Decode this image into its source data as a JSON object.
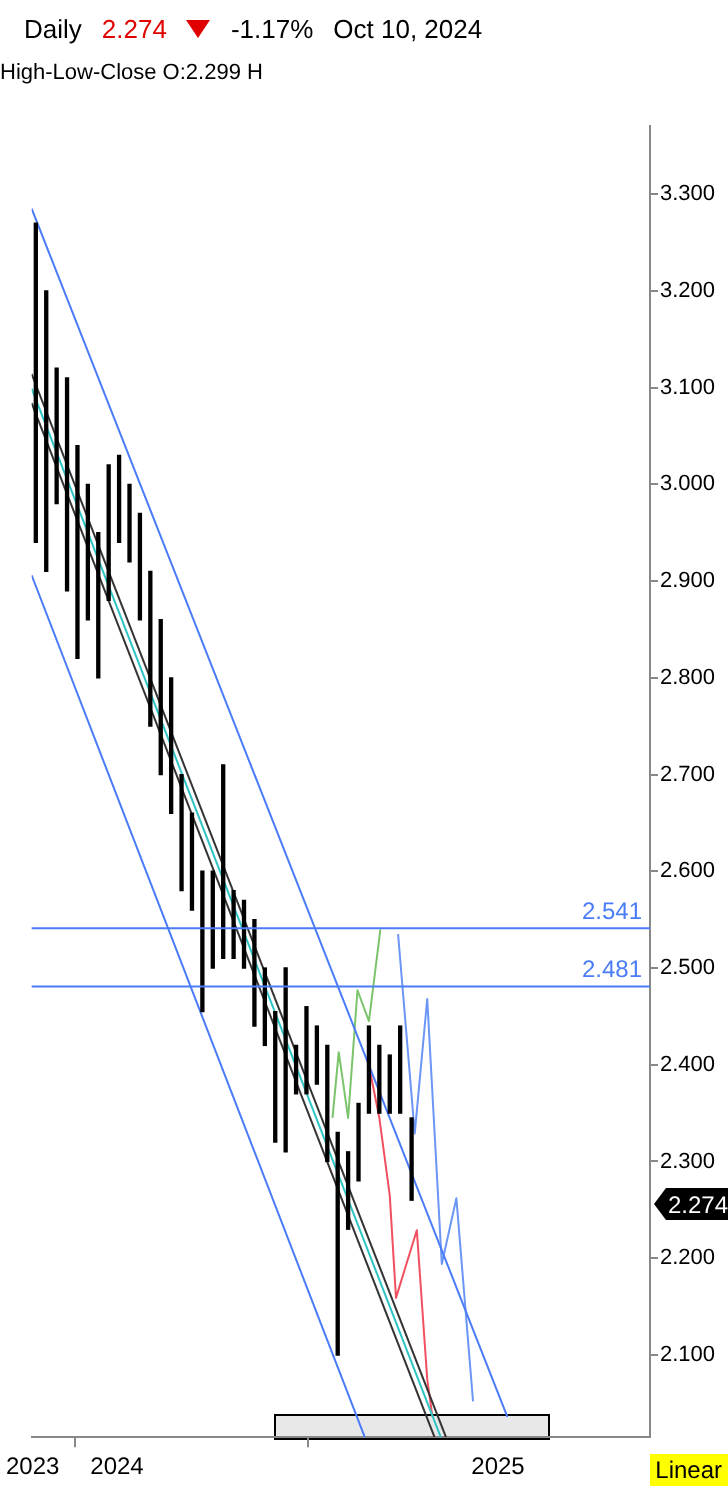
{
  "chart_data": {
    "type": "bar",
    "title": "High-Low-Close O:2.299 H",
    "subtitle": "Daily",
    "annotations": [
      "2.274",
      "-1.17%",
      "Oct 10, 2024",
      "Linear",
      "2.274"
    ],
    "x": [
      "2023-10-15",
      "2023-10-25",
      "2023-11-04",
      "2023-11-14",
      "2023-11-24",
      "2023-12-04",
      "2023-12-14",
      "2023-12-24",
      "2024-01-03",
      "2024-01-13",
      "2024-01-23",
      "2024-02-02",
      "2024-02-12",
      "2024-02-22",
      "2024-03-03",
      "2024-03-13",
      "2024-03-23",
      "2024-04-02",
      "2024-04-12",
      "2024-04-22",
      "2024-05-02",
      "2024-05-12",
      "2024-05-22",
      "2024-06-01",
      "2024-06-11",
      "2024-06-21",
      "2024-07-01",
      "2024-07-11",
      "2024-07-21",
      "2024-07-31",
      "2024-08-10",
      "2024-08-20",
      "2024-08-30",
      "2024-09-09",
      "2024-09-19",
      "2024-09-29",
      "2024-10-10"
    ],
    "base": [
      2.94,
      2.91,
      2.98,
      2.89,
      2.82,
      2.86,
      2.8,
      2.88,
      2.94,
      2.92,
      2.86,
      2.75,
      2.7,
      2.66,
      2.58,
      2.56,
      2.455,
      2.5,
      2.51,
      2.51,
      2.5,
      2.44,
      2.42,
      2.32,
      2.31,
      2.37,
      2.37,
      2.38,
      2.3,
      2.1,
      2.23,
      2.28,
      2.35,
      2.35,
      2.35,
      2.35,
      2.26
    ],
    "values": [
      0.33,
      0.29,
      0.14,
      0.22,
      0.22,
      0.14,
      0.15,
      0.14,
      0.09,
      0.08,
      0.11,
      0.16,
      0.16,
      0.14,
      0.12,
      0.1,
      0.145,
      0.1,
      0.2,
      0.07,
      0.07,
      0.11,
      0.08,
      0.135,
      0.19,
      0.05,
      0.09,
      0.06,
      0.12,
      0.23,
      0.08,
      0.08,
      0.09,
      0.07,
      0.06,
      0.09,
      0.085
    ],
    "color": "#000000",
    "series": [
      {
        "type": "line",
        "color": "#4a7cf7",
        "x": [
          "2023-10-11",
          "2025-01-10"
        ],
        "values": [
          3.285,
          2.036
        ]
      },
      {
        "type": "line",
        "color": "#4a7cf7",
        "x": [
          "2023-10-11",
          "2024-08-26"
        ],
        "values": [
          2.906,
          2.015
        ]
      },
      {
        "type": "line",
        "color": "#333333",
        "x": [
          "2023-10-11",
          "2024-11-12"
        ],
        "values": [
          3.114,
          2.015
        ]
      },
      {
        "type": "line",
        "color": "#2ec4c4",
        "x": [
          "2023-10-11",
          "2024-11-07"
        ],
        "values": [
          3.099,
          2.015
        ]
      },
      {
        "type": "line",
        "color": "#333333",
        "x": [
          "2023-10-11",
          "2024-11-01"
        ],
        "values": [
          3.084,
          2.015
        ]
      },
      {
        "type": "line",
        "color": "#7cc46c",
        "x": [
          "2024-07-26",
          "2024-08-01",
          "2024-08-10",
          "2024-08-19",
          "2024-08-30",
          "2024-09-10"
        ],
        "values": [
          2.345,
          2.413,
          2.345,
          2.477,
          2.445,
          2.54
        ]
      },
      {
        "type": "line",
        "color": "#f05060",
        "x": [
          "2024-08-31",
          "2024-09-09",
          "2024-09-19",
          "2024-09-25",
          "2024-10-15",
          "2024-10-25",
          "2024-10-30"
        ],
        "values": [
          2.394,
          2.345,
          2.265,
          2.159,
          2.229,
          2.075,
          2.036
        ]
      },
      {
        "type": "line",
        "color": "#6b96f5",
        "x": [
          "2024-09-27",
          "2024-10-13",
          "2024-10-25",
          "2024-11-08",
          "2024-11-22",
          "2024-12-08"
        ],
        "values": [
          2.535,
          2.329,
          2.468,
          2.194,
          2.262,
          2.052
        ]
      }
    ],
    "ref_lines": [
      {
        "axis": "y",
        "value": 2.541,
        "label": "2.541",
        "color": "#4a7cf7"
      },
      {
        "axis": "y",
        "value": 2.481,
        "label": "2.481",
        "color": "#4a7cf7"
      }
    ],
    "xlim": [
      "2023-10-11",
      "2025-05-27"
    ],
    "xticks": [
      {
        "value": "2023-10-12",
        "label": "2023"
      },
      {
        "value": "2024-01-01",
        "label": "2024"
      },
      {
        "value": "2025-01-01",
        "label": "2025"
      }
    ],
    "ylim": [
      2.015,
      3.37
    ],
    "yticks": [
      {
        "value": 2.1,
        "label": "2.100"
      },
      {
        "value": 2.2,
        "label": "2.200"
      },
      {
        "value": 2.3,
        "label": "2.300"
      },
      {
        "value": 2.4,
        "label": "2.400"
      },
      {
        "value": 2.5,
        "label": "2.500"
      },
      {
        "value": 2.6,
        "label": "2.600"
      },
      {
        "value": 2.7,
        "label": "2.700"
      },
      {
        "value": 2.8,
        "label": "2.800"
      },
      {
        "value": 2.9,
        "label": "2.900"
      },
      {
        "value": 3.0,
        "label": "3.000"
      },
      {
        "value": 3.1,
        "label": "3.100"
      },
      {
        "value": 3.2,
        "label": "3.200"
      },
      {
        "value": 3.3,
        "label": "3.300"
      }
    ],
    "grid": false,
    "legend": false
  }
}
